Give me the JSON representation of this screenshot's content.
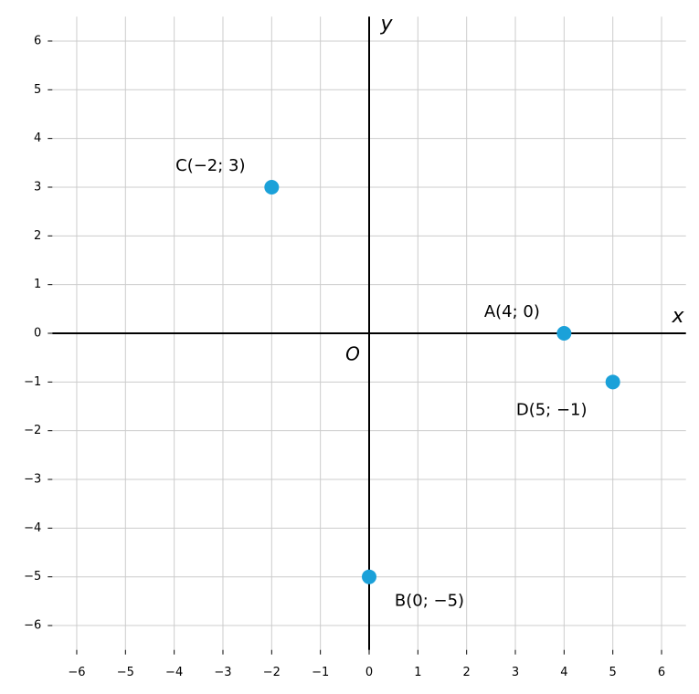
{
  "chart_data": {
    "type": "scatter",
    "x_label": "x",
    "y_label": "y",
    "origin_label": "O",
    "x": [
      4,
      0,
      -2,
      5
    ],
    "y": [
      0,
      -5,
      3,
      -1
    ],
    "point_labels": [
      "A(4; 0)",
      "B(0; −5)",
      "C(−2; 3)",
      "D(5; −1)"
    ],
    "color": "#1ba1d9",
    "xlim": [
      -6.5,
      6.5
    ],
    "ylim": [
      -6.5,
      6.5
    ],
    "xticks": [
      {
        "value": -6,
        "label": "−6"
      },
      {
        "value": -5,
        "label": "−5"
      },
      {
        "value": -4,
        "label": "−4"
      },
      {
        "value": -3,
        "label": "−3"
      },
      {
        "value": -2,
        "label": "−2"
      },
      {
        "value": -1,
        "label": "−1"
      },
      0,
      1,
      2,
      3,
      4,
      5,
      6
    ],
    "yticks": [
      {
        "value": -6,
        "label": "−6"
      },
      {
        "value": -5,
        "label": "−5"
      },
      {
        "value": -4,
        "label": "−4"
      },
      {
        "value": -3,
        "label": "−3"
      },
      {
        "value": -2,
        "label": "−2"
      },
      {
        "value": -1,
        "label": "−1"
      },
      0,
      1,
      2,
      3,
      4,
      5,
      6
    ],
    "grid": true
  }
}
